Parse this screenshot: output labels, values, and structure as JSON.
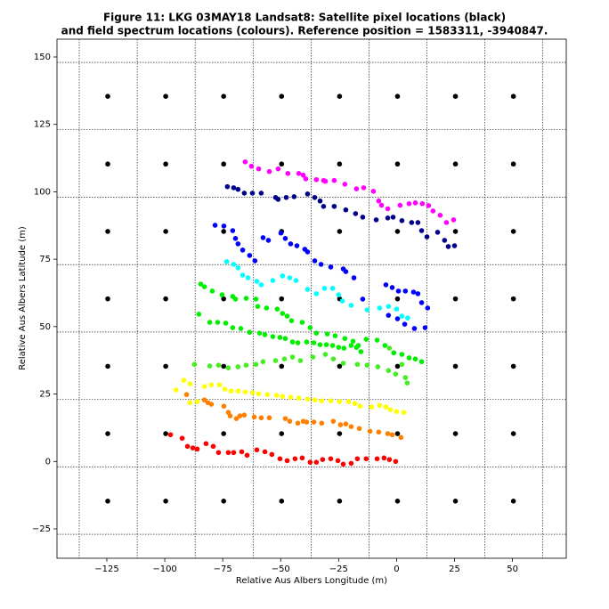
{
  "chart_data": {
    "type": "scatter",
    "title": "Figure 11: LKG 03MAY18  Landsat8: Satellite pixel locations (black)",
    "subtitle": "and field spectrum locations (colours). Reference position = 1583311, -3940847.",
    "xlabel": "Relative Aus Albers Longitude (m)",
    "ylabel": "Relative Aus Albers Latitude (m)",
    "xlim": [
      -146.5,
      73.2
    ],
    "ylim": [
      -35.9,
      156.6
    ],
    "xticks": [
      {
        "value": -125,
        "label": "−125"
      },
      {
        "value": -100,
        "label": "−100"
      },
      {
        "value": -75,
        "label": "−75"
      },
      {
        "value": -50,
        "label": "−50"
      },
      {
        "value": -25,
        "label": "−25"
      },
      0,
      25,
      50
    ],
    "yticks": [
      {
        "value": -25,
        "label": "−25"
      },
      0,
      25,
      50,
      75,
      100,
      125,
      150
    ],
    "xgrid": [
      -136.9,
      -111.9,
      -86.9,
      -61.9,
      -36.9,
      -11.9,
      13.1,
      38.1,
      63.1
    ],
    "ygrid": [
      148.0,
      123.0,
      98.0,
      73.0,
      48.0,
      23.0,
      -2.0,
      -27.0
    ],
    "series": [
      {
        "color": "#000000",
        "x": [
          -124.6,
          -99.6,
          -74.6,
          -49.6,
          -24.6,
          0.4,
          25.4,
          50.4,
          -124.6,
          -99.6,
          -74.6,
          -49.6,
          -24.6,
          0.4,
          25.4,
          50.4,
          -124.6,
          -99.6,
          -74.6,
          -49.6,
          -24.6,
          0.4,
          25.4,
          50.4,
          -124.6,
          -99.6,
          -74.6,
          -49.6,
          -24.6,
          0.4,
          25.4,
          50.4,
          -124.6,
          -99.6,
          -74.6,
          -49.6,
          -24.6,
          0.4,
          25.4,
          50.4,
          -124.6,
          -99.6,
          -74.6,
          -49.6,
          -24.6,
          0.4,
          25.4,
          50.4,
          -124.6,
          -99.6,
          -74.6,
          -49.6,
          -24.6,
          0.4,
          25.4,
          50.4
        ],
        "y": [
          135.4,
          135.4,
          135.4,
          135.4,
          135.4,
          135.4,
          135.4,
          135.4,
          110.3,
          110.3,
          110.3,
          110.3,
          110.3,
          110.3,
          110.3,
          110.3,
          85.3,
          85.3,
          85.3,
          85.3,
          85.3,
          85.3,
          85.3,
          85.3,
          60.3,
          60.3,
          60.3,
          60.3,
          60.3,
          60.3,
          60.3,
          60.3,
          35.3,
          35.3,
          35.3,
          35.3,
          35.3,
          35.3,
          35.3,
          35.3,
          10.3,
          10.3,
          10.3,
          10.3,
          10.3,
          10.3,
          10.3,
          10.3,
          -14.7,
          -14.7,
          -14.7,
          -14.7,
          -14.7,
          -14.7,
          -14.7,
          -14.7
        ]
      },
      {
        "color": "#ff00ff",
        "x": [
          -65.3,
          -62.6,
          -59.5,
          -54.9,
          -51.1,
          -46.9,
          -42.2,
          -40.3,
          -39.2,
          -34.6,
          -31.5,
          -30.7,
          -26.9,
          -22.3,
          -17.3,
          -14.2,
          -10.0,
          -7.7,
          -6.5,
          -3.8,
          1.5,
          5.4,
          8.1,
          11.1,
          13.8,
          15.7,
          18.8,
          21.5,
          24.6
        ],
        "y": [
          111.1,
          109.5,
          108.5,
          107.5,
          108.5,
          106.8,
          106.8,
          106.2,
          104.8,
          104.5,
          104.2,
          103.9,
          104.2,
          102.8,
          101.1,
          101.5,
          100.2,
          96.6,
          95.0,
          93.7,
          95.0,
          95.6,
          95.9,
          95.6,
          94.9,
          92.9,
          91.3,
          88.6,
          89.6
        ]
      },
      {
        "color": "#00008b",
        "x": [
          -73.0,
          -70.3,
          -68.4,
          -65.7,
          -62.2,
          -58.4,
          -52.2,
          -51.1,
          -47.6,
          -44.2,
          -38.4,
          -35.3,
          -33.0,
          -31.5,
          -26.9,
          -21.9,
          -17.7,
          -14.6,
          -8.8,
          -3.8,
          -1.5,
          2.3,
          6.5,
          9.2,
          10.8,
          13.1,
          17.7,
          20.7,
          22.3,
          25.0
        ],
        "y": [
          101.9,
          101.5,
          100.9,
          99.5,
          99.5,
          99.5,
          97.9,
          97.2,
          97.9,
          98.2,
          99.2,
          97.9,
          96.6,
          94.6,
          94.6,
          93.3,
          91.9,
          90.6,
          89.6,
          90.3,
          90.6,
          89.3,
          88.6,
          88.6,
          85.6,
          83.3,
          85.0,
          82.0,
          79.7,
          80.0
        ]
      },
      {
        "color": "#0000ff",
        "x": [
          -78.3,
          -74.5,
          -70.7,
          -69.5,
          -68.4,
          -66.4,
          -63.4,
          -61.1,
          -57.6,
          -55.3,
          -49.9,
          -48.0,
          -45.7,
          -43.0,
          -39.6,
          -38.4,
          -35.3,
          -32.6,
          -28.4,
          -23.0,
          -21.9,
          -18.4,
          -14.6,
          -4.6,
          -1.9,
          0.8,
          3.8,
          7.3,
          9.2,
          10.8,
          13.4,
          -3.5,
          0.4,
          3.5,
          7.7,
          12.3
        ],
        "y": [
          87.6,
          87.3,
          85.6,
          82.7,
          80.7,
          78.4,
          76.4,
          74.4,
          83.0,
          82.0,
          84.7,
          82.7,
          80.7,
          80.0,
          78.7,
          77.7,
          74.4,
          73.1,
          72.1,
          71.4,
          70.4,
          68.1,
          60.2,
          65.5,
          64.5,
          63.2,
          63.2,
          62.8,
          62.2,
          58.9,
          56.9,
          54.2,
          52.9,
          50.9,
          49.3,
          49.6
        ]
      },
      {
        "color": "#00ffff",
        "x": [
          -73.3,
          -70.3,
          -68.4,
          -66.4,
          -64.1,
          -60.3,
          -58.4,
          -53.4,
          -49.2,
          -46.1,
          -43.4,
          -38.4,
          -34.6,
          -31.1,
          -27.6,
          -25.0,
          -23.4,
          -19.6,
          -12.7,
          -7.3,
          -3.5,
          0.0,
          2.3,
          4.8
        ],
        "y": [
          74.1,
          73.1,
          71.8,
          69.1,
          68.1,
          66.8,
          65.5,
          67.1,
          68.8,
          68.1,
          67.1,
          63.8,
          62.2,
          64.2,
          64.2,
          61.8,
          59.5,
          57.9,
          56.2,
          56.9,
          57.5,
          56.5,
          53.9,
          53.2
        ]
      },
      {
        "color": "#00ee00",
        "x": [
          -84.5,
          -82.9,
          -79.5,
          -75.3,
          -70.7,
          -69.5,
          -64.9,
          -60.7,
          -59.9,
          -56.1,
          -51.5,
          -49.2,
          -47.2,
          -45.3,
          -40.7,
          -37.3,
          -34.6,
          -29.9,
          -26.5,
          -22.3,
          -18.8,
          -16.5,
          -13.1,
          -8.4,
          -5.0,
          -1.2,
          2.3,
          5.4,
          8.1,
          10.8,
          -85.3,
          -80.6,
          -77.2,
          -73.7,
          -70.7,
          -67.2,
          -63.4,
          -59.1,
          -56.8,
          -53.4,
          -50.3,
          -48.0,
          -44.9,
          -42.6,
          -38.8,
          -35.7,
          -33.0,
          -30.3,
          -27.6,
          -25.0,
          -22.7,
          -19.6,
          -17.3,
          -15.4
        ],
        "y": [
          65.8,
          64.8,
          63.2,
          61.8,
          61.2,
          60.2,
          60.5,
          60.2,
          57.5,
          56.9,
          56.5,
          54.9,
          53.9,
          52.2,
          51.6,
          49.6,
          47.6,
          47.3,
          46.6,
          45.6,
          44.6,
          43.0,
          45.3,
          45.0,
          43.0,
          40.3,
          39.7,
          38.4,
          38.0,
          37.0,
          54.6,
          51.6,
          51.6,
          51.3,
          49.6,
          49.3,
          47.9,
          47.6,
          47.0,
          46.3,
          46.0,
          45.6,
          44.3,
          44.0,
          44.3,
          44.0,
          43.3,
          43.3,
          43.0,
          42.3,
          42.0,
          43.0,
          42.3,
          40.7
        ]
      },
      {
        "color": "#44ee22",
        "x": [
          -87.2,
          -80.6,
          -76.8,
          -72.6,
          -68.4,
          -64.9,
          -60.7,
          -57.6,
          -52.2,
          -48.4,
          -44.9,
          -41.5,
          -36.1,
          -30.7,
          -27.3,
          -23.0,
          -16.9,
          -12.7,
          -8.1,
          -3.5,
          -0.4,
          3.8,
          4.6,
          2.3,
          -3.1
        ],
        "y": [
          36.0,
          35.4,
          35.7,
          34.7,
          35.1,
          35.7,
          36.0,
          37.0,
          37.4,
          38.0,
          38.7,
          37.4,
          38.7,
          39.7,
          38.0,
          36.4,
          36.0,
          35.7,
          35.1,
          33.7,
          32.4,
          31.1,
          29.1,
          36.0,
          42.0
        ]
      },
      {
        "color": "#ffff00",
        "x": [
          -95.2,
          -91.8,
          -89.1,
          -89.1,
          -86.0,
          -82.9,
          -79.9,
          -76.4,
          -74.1,
          -71.4,
          -68.4,
          -65.3,
          -62.2,
          -59.5,
          -55.7,
          -51.8,
          -49.2,
          -45.7,
          -42.2,
          -38.4,
          -35.3,
          -32.3,
          -28.4,
          -24.6,
          -20.7,
          -18.0,
          -15.7,
          -10.8,
          -7.3,
          -4.6,
          -2.7,
          0.0,
          3.1
        ],
        "y": [
          26.5,
          30.1,
          28.8,
          21.8,
          22.2,
          27.8,
          28.4,
          28.4,
          26.8,
          26.1,
          26.1,
          25.8,
          25.5,
          25.1,
          24.8,
          24.5,
          24.1,
          23.8,
          23.5,
          23.1,
          22.8,
          22.5,
          22.5,
          22.2,
          22.2,
          21.5,
          20.5,
          20.2,
          20.8,
          20.2,
          19.2,
          18.5,
          18.2
        ]
      },
      {
        "color": "#ff8000",
        "x": [
          -90.6,
          -82.9,
          -81.4,
          -79.9,
          -74.5,
          -72.6,
          -71.8,
          -69.1,
          -67.6,
          -65.7,
          -61.4,
          -58.4,
          -54.9,
          -48.0,
          -46.1,
          -42.6,
          -40.3,
          -38.8,
          -35.7,
          -32.3,
          -27.3,
          -24.2,
          -21.9,
          -19.6,
          -16.1,
          -11.5,
          -7.7,
          -3.8,
          -1.9,
          1.9
        ],
        "y": [
          24.8,
          22.8,
          21.8,
          21.2,
          20.5,
          18.2,
          16.9,
          15.9,
          16.9,
          17.2,
          16.5,
          16.2,
          16.2,
          15.9,
          14.9,
          14.2,
          14.9,
          14.6,
          14.6,
          14.2,
          14.9,
          13.6,
          13.9,
          12.9,
          12.2,
          11.2,
          10.9,
          10.3,
          9.9,
          8.9
        ]
      },
      {
        "color": "#ff0000",
        "x": [
          -97.5,
          -92.5,
          -90.2,
          -87.9,
          -86.0,
          -82.2,
          -79.1,
          -76.8,
          -72.6,
          -70.3,
          -66.8,
          -64.5,
          -60.3,
          -56.8,
          -53.8,
          -50.3,
          -47.2,
          -43.8,
          -40.7,
          -37.3,
          -34.6,
          -31.9,
          -28.4,
          -25.3,
          -23.0,
          -19.6,
          -16.9,
          -13.1,
          -8.4,
          -5.4,
          -3.1,
          -0.4
        ],
        "y": [
          9.9,
          8.6,
          5.6,
          5.0,
          4.6,
          6.6,
          5.6,
          3.3,
          3.3,
          3.3,
          3.6,
          2.3,
          4.3,
          3.6,
          2.6,
          1.0,
          0.3,
          1.0,
          1.3,
          -0.3,
          -0.3,
          0.7,
          1.0,
          0.3,
          -1.0,
          -0.7,
          1.0,
          1.0,
          1.0,
          1.3,
          0.7,
          0.0
        ]
      }
    ]
  }
}
